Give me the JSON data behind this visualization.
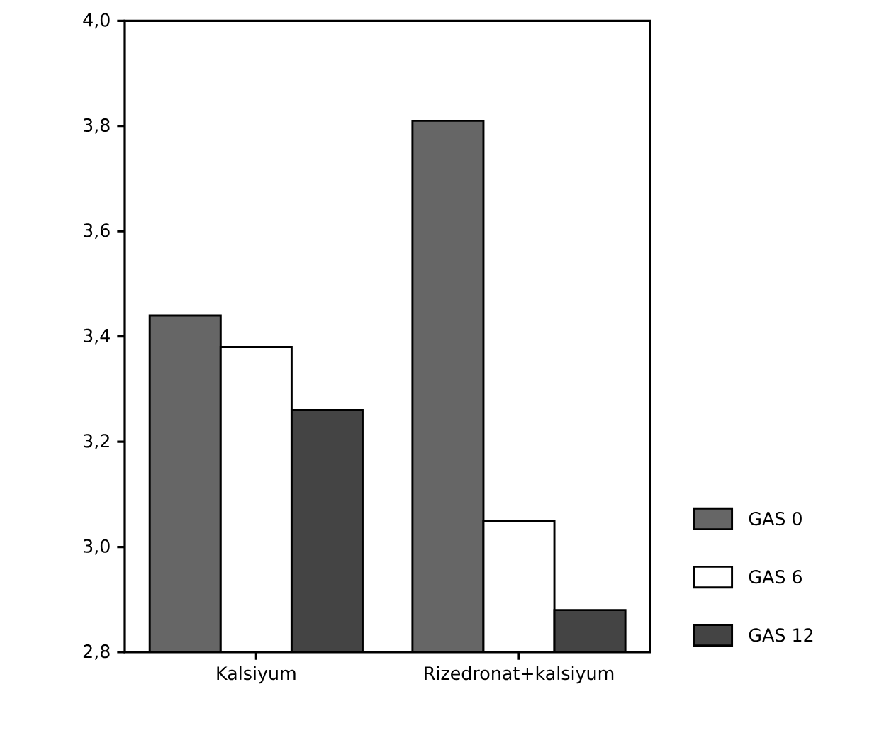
{
  "chart_data": {
    "type": "bar",
    "categories": [
      "Kalsiyum",
      "Rizedronat+kalsiyum"
    ],
    "series": [
      {
        "name": "GAS 0",
        "color": "#666666",
        "values": [
          3.44,
          3.81
        ]
      },
      {
        "name": "GAS 6",
        "color": "#ffffff",
        "values": [
          3.38,
          3.05
        ]
      },
      {
        "name": "GAS 12",
        "color": "#444444",
        "values": [
          3.26,
          2.88
        ]
      }
    ],
    "ylim": [
      2.8,
      4.0
    ],
    "yticks": [
      {
        "value": 2.8,
        "label": "2,8"
      },
      {
        "value": 3.0,
        "label": "3,0"
      },
      {
        "value": 3.2,
        "label": "3,2"
      },
      {
        "value": 3.4,
        "label": "3,4"
      },
      {
        "value": 3.6,
        "label": "3,6"
      },
      {
        "value": 3.8,
        "label": "3,8"
      },
      {
        "value": 4.0,
        "label": "4,0"
      }
    ],
    "grid": false,
    "legend": "right"
  }
}
